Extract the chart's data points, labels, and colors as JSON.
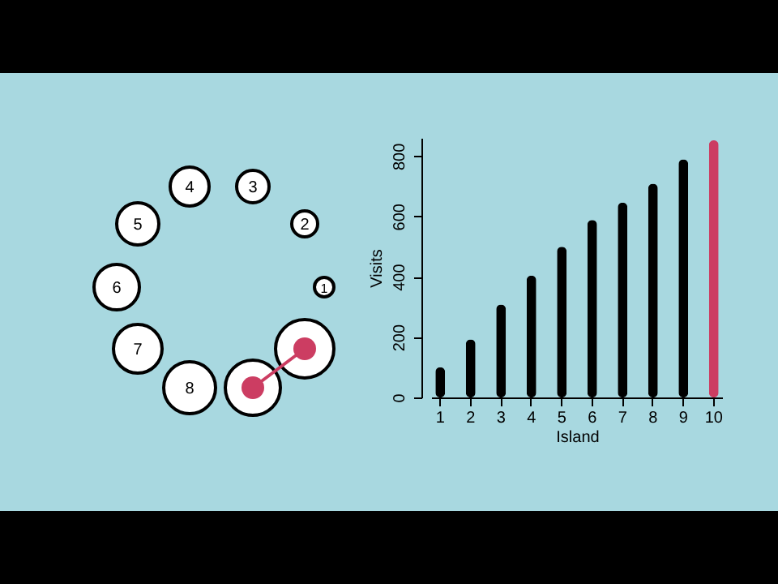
{
  "chart_data": {
    "type": "bar",
    "xlabel": "Island",
    "ylabel": "Visits",
    "categories": [
      "1",
      "2",
      "3",
      "4",
      "5",
      "6",
      "7",
      "8",
      "9",
      "10"
    ],
    "values": [
      100,
      192,
      308,
      404,
      499,
      588,
      646,
      708,
      789,
      852
    ],
    "colors": [
      "#000000",
      "#000000",
      "#000000",
      "#000000",
      "#000000",
      "#000000",
      "#000000",
      "#000000",
      "#000000",
      "#cc3d62"
    ],
    "ylim": [
      0,
      860
    ],
    "yticks": [
      0,
      200,
      400,
      600,
      800
    ],
    "grid": false
  }
}
